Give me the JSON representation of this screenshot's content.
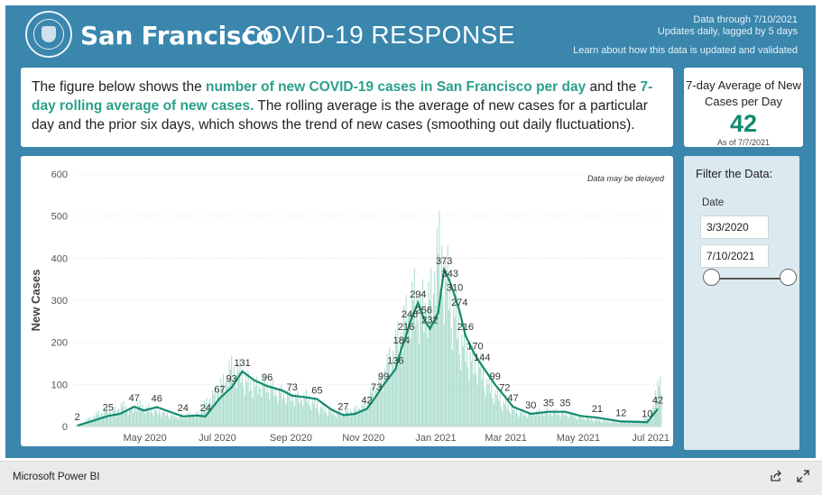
{
  "header": {
    "city": "San Francisco",
    "title": "COVID-19 RESPONSE",
    "data_through": "Data through 7/10/2021",
    "update_note": "Updates daily, lagged by 5 days",
    "learn_link": "Learn about how this data is updated and validated"
  },
  "description": {
    "part1": "The figure below shows the ",
    "highlight1": "number of new COVID-19 cases in San Francisco per day",
    "part2": " and the ",
    "highlight2": "7-day rolling average of new cases.",
    "part3": " The rolling average is the average of new cases for a particular day and the prior six days, which shows the trend of new cases (smoothing out daily fluctuations)."
  },
  "kpi": {
    "title": "7-day Average of New Cases per Day",
    "value": "42",
    "as_of": "As of 7/7/2021"
  },
  "filter": {
    "title": "Filter the Data:",
    "date_label": "Date",
    "start_date": "3/3/2020",
    "end_date": "7/10/2021",
    "range_start_fraction": 0,
    "range_end_fraction": 1
  },
  "footer": {
    "brand": "Microsoft Power BI",
    "share_icon": "share-icon",
    "expand_icon": "expand-icon"
  },
  "colors": {
    "frame": "#3a86ad",
    "bars": "#a8dccb",
    "line": "#138a70",
    "highlight_text": "#2aa08a"
  },
  "chart_data": {
    "type": "bar",
    "title": "",
    "xlabel": "",
    "ylabel": "New Cases",
    "note": "Data may be delayed",
    "ylim": [
      0,
      600
    ],
    "y_ticks": [
      0,
      100,
      200,
      300,
      400,
      500,
      600
    ],
    "x_range": [
      "2020-03-03",
      "2021-07-10"
    ],
    "x_ticks": [
      {
        "date": "2020-05-01",
        "label": "May 2020"
      },
      {
        "date": "2020-07-01",
        "label": "Jul 2020"
      },
      {
        "date": "2020-09-01",
        "label": "Sep 2020"
      },
      {
        "date": "2020-11-01",
        "label": "Nov 2020"
      },
      {
        "date": "2021-01-01",
        "label": "Jan 2021"
      },
      {
        "date": "2021-03-01",
        "label": "Mar 2021"
      },
      {
        "date": "2021-05-01",
        "label": "May 2021"
      },
      {
        "date": "2021-07-01",
        "label": "Jul 2021"
      }
    ],
    "grid": true,
    "series": [
      {
        "type": "bar",
        "values_weekly_approx": [
          {
            "date": "2020-03-08",
            "value": 5
          },
          {
            "date": "2020-03-15",
            "value": 18
          },
          {
            "date": "2020-03-22",
            "value": 30
          },
          {
            "date": "2020-03-29",
            "value": 36
          },
          {
            "date": "2020-04-05",
            "value": 38
          },
          {
            "date": "2020-04-12",
            "value": 48
          },
          {
            "date": "2020-04-19",
            "value": 40
          },
          {
            "date": "2020-04-26",
            "value": 50
          },
          {
            "date": "2020-05-03",
            "value": 42
          },
          {
            "date": "2020-05-10",
            "value": 36
          },
          {
            "date": "2020-05-17",
            "value": 32
          },
          {
            "date": "2020-05-24",
            "value": 26
          },
          {
            "date": "2020-05-31",
            "value": 24
          },
          {
            "date": "2020-06-07",
            "value": 28
          },
          {
            "date": "2020-06-14",
            "value": 30
          },
          {
            "date": "2020-06-21",
            "value": 55
          },
          {
            "date": "2020-06-28",
            "value": 75
          },
          {
            "date": "2020-07-05",
            "value": 100
          },
          {
            "date": "2020-07-12",
            "value": 135
          },
          {
            "date": "2020-07-19",
            "value": 130
          },
          {
            "date": "2020-07-26",
            "value": 105
          },
          {
            "date": "2020-08-02",
            "value": 95
          },
          {
            "date": "2020-08-09",
            "value": 100
          },
          {
            "date": "2020-08-16",
            "value": 90
          },
          {
            "date": "2020-08-23",
            "value": 80
          },
          {
            "date": "2020-08-30",
            "value": 75
          },
          {
            "date": "2020-09-06",
            "value": 68
          },
          {
            "date": "2020-09-13",
            "value": 70
          },
          {
            "date": "2020-09-20",
            "value": 55
          },
          {
            "date": "2020-09-27",
            "value": 42
          },
          {
            "date": "2020-10-04",
            "value": 35
          },
          {
            "date": "2020-10-11",
            "value": 30
          },
          {
            "date": "2020-10-18",
            "value": 36
          },
          {
            "date": "2020-10-25",
            "value": 40
          },
          {
            "date": "2020-11-01",
            "value": 48
          },
          {
            "date": "2020-11-08",
            "value": 80
          },
          {
            "date": "2020-11-15",
            "value": 105
          },
          {
            "date": "2020-11-22",
            "value": 150
          },
          {
            "date": "2020-11-29",
            "value": 200
          },
          {
            "date": "2020-12-06",
            "value": 250
          },
          {
            "date": "2020-12-13",
            "value": 300
          },
          {
            "date": "2020-12-20",
            "value": 280
          },
          {
            "date": "2020-12-27",
            "value": 300
          },
          {
            "date": "2021-01-03",
            "value": 410
          },
          {
            "date": "2021-01-10",
            "value": 345
          },
          {
            "date": "2021-01-17",
            "value": 260
          },
          {
            "date": "2021-01-24",
            "value": 190
          },
          {
            "date": "2021-01-31",
            "value": 155
          },
          {
            "date": "2021-02-07",
            "value": 140
          },
          {
            "date": "2021-02-14",
            "value": 100
          },
          {
            "date": "2021-02-21",
            "value": 75
          },
          {
            "date": "2021-02-28",
            "value": 52
          },
          {
            "date": "2021-03-07",
            "value": 40
          },
          {
            "date": "2021-03-14",
            "value": 32
          },
          {
            "date": "2021-03-21",
            "value": 30
          },
          {
            "date": "2021-03-28",
            "value": 34
          },
          {
            "date": "2021-04-04",
            "value": 36
          },
          {
            "date": "2021-04-11",
            "value": 34
          },
          {
            "date": "2021-04-18",
            "value": 32
          },
          {
            "date": "2021-04-25",
            "value": 28
          },
          {
            "date": "2021-05-02",
            "value": 22
          },
          {
            "date": "2021-05-09",
            "value": 20
          },
          {
            "date": "2021-05-16",
            "value": 16
          },
          {
            "date": "2021-05-23",
            "value": 14
          },
          {
            "date": "2021-05-30",
            "value": 12
          },
          {
            "date": "2021-06-06",
            "value": 11
          },
          {
            "date": "2021-06-13",
            "value": 10
          },
          {
            "date": "2021-06-20",
            "value": 12
          },
          {
            "date": "2021-06-27",
            "value": 18
          },
          {
            "date": "2021-07-04",
            "value": 45
          },
          {
            "date": "2021-07-08",
            "value": 95
          }
        ]
      },
      {
        "type": "line",
        "points": [
          {
            "date": "2020-03-05",
            "value": 2
          },
          {
            "date": "2020-03-20",
            "value": 15
          },
          {
            "date": "2020-03-31",
            "value": 25
          },
          {
            "date": "2020-04-10",
            "value": 30
          },
          {
            "date": "2020-04-22",
            "value": 47
          },
          {
            "date": "2020-04-30",
            "value": 38
          },
          {
            "date": "2020-05-11",
            "value": 46
          },
          {
            "date": "2020-05-25",
            "value": 32
          },
          {
            "date": "2020-06-02",
            "value": 24
          },
          {
            "date": "2020-06-14",
            "value": 26
          },
          {
            "date": "2020-06-21",
            "value": 24
          },
          {
            "date": "2020-07-03",
            "value": 67
          },
          {
            "date": "2020-07-13",
            "value": 93
          },
          {
            "date": "2020-07-22",
            "value": 131
          },
          {
            "date": "2020-08-01",
            "value": 110
          },
          {
            "date": "2020-08-12",
            "value": 96
          },
          {
            "date": "2020-08-25",
            "value": 85
          },
          {
            "date": "2020-09-02",
            "value": 73
          },
          {
            "date": "2020-09-12",
            "value": 70
          },
          {
            "date": "2020-09-23",
            "value": 65
          },
          {
            "date": "2020-10-05",
            "value": 40
          },
          {
            "date": "2020-10-15",
            "value": 27
          },
          {
            "date": "2020-10-25",
            "value": 30
          },
          {
            "date": "2020-11-04",
            "value": 42
          },
          {
            "date": "2020-11-12",
            "value": 73
          },
          {
            "date": "2020-11-18",
            "value": 99
          },
          {
            "date": "2020-11-28",
            "value": 136
          },
          {
            "date": "2020-12-03",
            "value": 184
          },
          {
            "date": "2020-12-07",
            "value": 216
          },
          {
            "date": "2020-12-10",
            "value": 246
          },
          {
            "date": "2020-12-17",
            "value": 294
          },
          {
            "date": "2020-12-22",
            "value": 256
          },
          {
            "date": "2020-12-27",
            "value": 232
          },
          {
            "date": "2021-01-03",
            "value": 270
          },
          {
            "date": "2021-01-08",
            "value": 373
          },
          {
            "date": "2021-01-13",
            "value": 343
          },
          {
            "date": "2021-01-17",
            "value": 310
          },
          {
            "date": "2021-01-21",
            "value": 274
          },
          {
            "date": "2021-01-26",
            "value": 216
          },
          {
            "date": "2021-02-03",
            "value": 170
          },
          {
            "date": "2021-02-09",
            "value": 144
          },
          {
            "date": "2021-02-20",
            "value": 99
          },
          {
            "date": "2021-02-28",
            "value": 72
          },
          {
            "date": "2021-03-07",
            "value": 47
          },
          {
            "date": "2021-03-22",
            "value": 30
          },
          {
            "date": "2021-04-06",
            "value": 35
          },
          {
            "date": "2021-04-20",
            "value": 35
          },
          {
            "date": "2021-05-03",
            "value": 25
          },
          {
            "date": "2021-05-17",
            "value": 21
          },
          {
            "date": "2021-06-06",
            "value": 12
          },
          {
            "date": "2021-06-20",
            "value": 11
          },
          {
            "date": "2021-06-28",
            "value": 10
          },
          {
            "date": "2021-07-07",
            "value": 42
          }
        ]
      }
    ],
    "data_labels": [
      {
        "date": "2020-03-05",
        "value": 2,
        "label": "2"
      },
      {
        "date": "2020-03-31",
        "value": 25,
        "label": "25"
      },
      {
        "date": "2020-04-22",
        "value": 47,
        "label": "47"
      },
      {
        "date": "2020-05-11",
        "value": 46,
        "label": "46"
      },
      {
        "date": "2020-06-02",
        "value": 24,
        "label": "24"
      },
      {
        "date": "2020-06-21",
        "value": 24,
        "label": "24"
      },
      {
        "date": "2020-07-03",
        "value": 67,
        "label": "67"
      },
      {
        "date": "2020-07-13",
        "value": 93,
        "label": "93"
      },
      {
        "date": "2020-07-22",
        "value": 131,
        "label": "131"
      },
      {
        "date": "2020-08-12",
        "value": 96,
        "label": "96"
      },
      {
        "date": "2020-09-02",
        "value": 73,
        "label": "73"
      },
      {
        "date": "2020-09-23",
        "value": 65,
        "label": "65"
      },
      {
        "date": "2020-10-15",
        "value": 27,
        "label": "27"
      },
      {
        "date": "2020-11-04",
        "value": 42,
        "label": "42"
      },
      {
        "date": "2020-11-12",
        "value": 73,
        "label": "73"
      },
      {
        "date": "2020-11-18",
        "value": 99,
        "label": "99"
      },
      {
        "date": "2020-11-28",
        "value": 136,
        "label": "136"
      },
      {
        "date": "2020-12-03",
        "value": 184,
        "label": "184"
      },
      {
        "date": "2020-12-07",
        "value": 216,
        "label": "216"
      },
      {
        "date": "2020-12-10",
        "value": 246,
        "label": "246"
      },
      {
        "date": "2020-12-17",
        "value": 294,
        "label": "294"
      },
      {
        "date": "2020-12-22",
        "value": 256,
        "label": "256"
      },
      {
        "date": "2020-12-27",
        "value": 232,
        "label": "232"
      },
      {
        "date": "2021-01-08",
        "value": 373,
        "label": "373"
      },
      {
        "date": "2021-01-13",
        "value": 343,
        "label": "343"
      },
      {
        "date": "2021-01-17",
        "value": 310,
        "label": "310"
      },
      {
        "date": "2021-01-21",
        "value": 274,
        "label": "274"
      },
      {
        "date": "2021-01-26",
        "value": 216,
        "label": "216"
      },
      {
        "date": "2021-02-03",
        "value": 170,
        "label": "170"
      },
      {
        "date": "2021-02-09",
        "value": 144,
        "label": "144"
      },
      {
        "date": "2021-02-20",
        "value": 99,
        "label": "99"
      },
      {
        "date": "2021-02-28",
        "value": 72,
        "label": "72"
      },
      {
        "date": "2021-03-07",
        "value": 47,
        "label": "47"
      },
      {
        "date": "2021-03-22",
        "value": 30,
        "label": "30"
      },
      {
        "date": "2021-04-06",
        "value": 35,
        "label": "35"
      },
      {
        "date": "2021-04-20",
        "value": 35,
        "label": "35"
      },
      {
        "date": "2021-05-17",
        "value": 21,
        "label": "21"
      },
      {
        "date": "2021-06-06",
        "value": 12,
        "label": "12"
      },
      {
        "date": "2021-06-28",
        "value": 10,
        "label": "10"
      },
      {
        "date": "2021-07-07",
        "value": 42,
        "label": "42"
      }
    ]
  }
}
